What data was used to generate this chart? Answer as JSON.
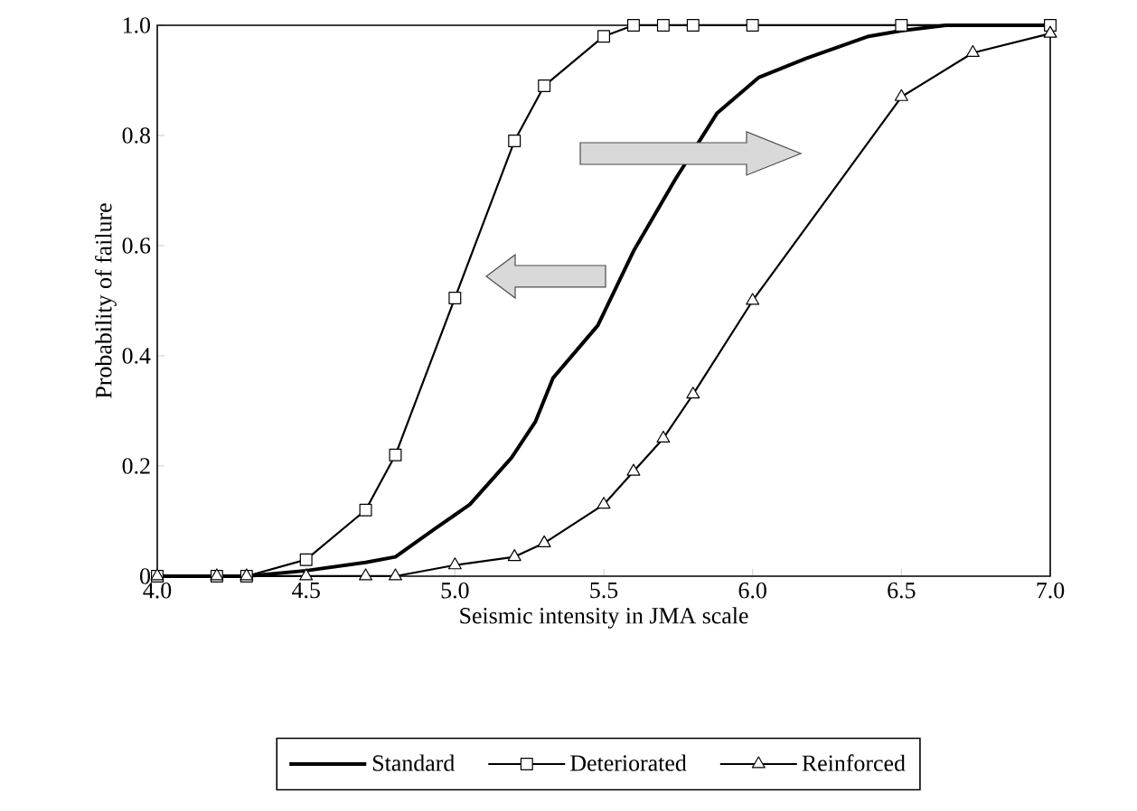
{
  "chart_data": {
    "type": "line",
    "xlabel": "Seismic intensity in JMA scale",
    "ylabel": "Probability of failure",
    "xlim": [
      4.0,
      7.0
    ],
    "ylim": [
      0,
      1.0
    ],
    "xticks": [
      {
        "value": 4,
        "label": "4.0"
      },
      {
        "value": 4.5,
        "label": "4.5"
      },
      {
        "value": 5,
        "label": "5.0"
      },
      {
        "value": 5.5,
        "label": "5.5"
      },
      {
        "value": 6,
        "label": "6.0"
      },
      {
        "value": 6.5,
        "label": "6.5"
      },
      {
        "value": 7,
        "label": "7.0"
      }
    ],
    "yticks": [
      0,
      {
        "value": 0.2,
        "label": "0.2"
      },
      {
        "value": 0.4,
        "label": "0.4"
      },
      {
        "value": 0.6,
        "label": "0.6"
      },
      {
        "value": 0.8,
        "label": "0.8"
      },
      {
        "value": 1,
        "label": "1.0"
      }
    ],
    "grid": false,
    "legend": "bottom",
    "series": [
      {
        "name": "Standard",
        "color": "#000000",
        "marker": "none",
        "x": [
          4.0,
          4.2,
          4.3,
          4.5,
          4.7,
          4.8,
          4.93,
          5.05,
          5.19,
          5.27,
          5.33,
          5.48,
          5.6,
          5.74,
          5.88,
          6.02,
          6.18,
          6.39,
          6.5,
          6.65,
          7.0
        ],
        "values": [
          0,
          0,
          0,
          0.01,
          0.025,
          0.035,
          0.085,
          0.13,
          0.215,
          0.28,
          0.36,
          0.455,
          0.59,
          0.72,
          0.84,
          0.905,
          0.94,
          0.98,
          0.99,
          1.0,
          1.0
        ]
      },
      {
        "name": "Deteriorated",
        "color": "#000000",
        "marker": "square",
        "x": [
          4.0,
          4.2,
          4.3,
          4.5,
          4.7,
          4.8,
          5.0,
          5.2,
          5.3,
          5.5,
          5.6,
          5.7,
          5.8,
          6.0,
          6.5,
          7.0
        ],
        "values": [
          0,
          0,
          0,
          0.03,
          0.12,
          0.22,
          0.505,
          0.79,
          0.89,
          0.98,
          1.0,
          1.0,
          1.0,
          1.0,
          1.0,
          1.0
        ]
      },
      {
        "name": "Reinforced",
        "color": "#000000",
        "marker": "triangle",
        "x": [
          4.0,
          4.2,
          4.3,
          4.5,
          4.7,
          4.8,
          5.0,
          5.2,
          5.3,
          5.5,
          5.6,
          5.7,
          5.8,
          6.0,
          6.5,
          6.74,
          7.0
        ],
        "values": [
          0,
          0,
          0,
          0,
          0,
          0,
          0.02,
          0.035,
          0.06,
          0.13,
          0.19,
          0.25,
          0.33,
          0.5,
          0.87,
          0.95,
          0.985
        ]
      }
    ]
  }
}
